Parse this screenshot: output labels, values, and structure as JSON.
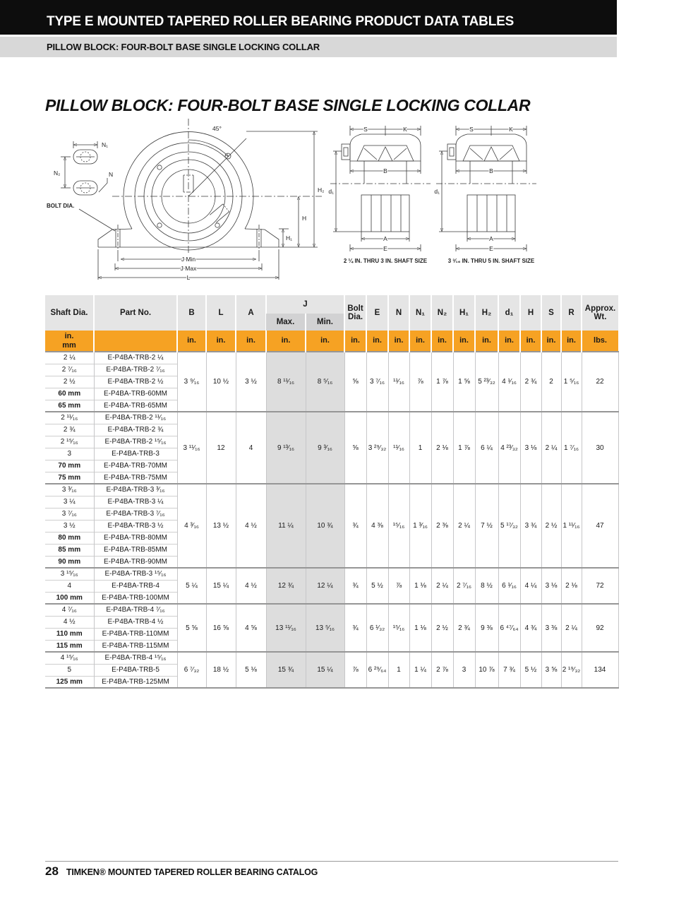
{
  "banner": {
    "line1": "TYPE E MOUNTED TAPERED ROLLER BEARING PRODUCT DATA TABLES",
    "line2": "PILLOW BLOCK: FOUR-BOLT BASE SINGLE LOCKING COLLAR"
  },
  "title": "PILLOW BLOCK: FOUR-BOLT BASE SINGLE LOCKING COLLAR",
  "diagrams": {
    "front": {
      "angle": "45°",
      "n1": "N₁",
      "n2": "N₂",
      "n": "N",
      "bolt_dia": "BOLT DIA.",
      "h2": "H₂",
      "h": "H",
      "h1": "H₁",
      "j_min": "J Min",
      "j_max": "J Max",
      "l": "L"
    },
    "section": {
      "s": "S",
      "k": "K",
      "b": "B",
      "d1": "d₁",
      "a": "A",
      "e": "E"
    },
    "caption_left": "2 ¼ IN. THRU 3 IN. SHAFT SIZE",
    "caption_right": "3 ³⁄₁₆ IN. THRU 5 IN. SHAFT SIZE"
  },
  "table": {
    "headers": {
      "shaft": "Shaft Dia.",
      "part": "Part No.",
      "b": "B",
      "l": "L",
      "a": "A",
      "j": "J",
      "jmax": "Max.",
      "jmin": "Min.",
      "bolt": "Bolt Dia.",
      "e": "E",
      "n": "N",
      "n1": "N₁",
      "n2": "N₂",
      "h1": "H₁",
      "h2": "H₂",
      "d1": "d₁",
      "h": "H",
      "s": "S",
      "r": "R",
      "wt": "Approx. Wt."
    },
    "units": {
      "shaft_in": "in.",
      "shaft_mm": "mm",
      "dim": "in.",
      "wt": "lbs."
    },
    "groups": [
      {
        "rows": [
          [
            "2 ¼",
            "E-P4BA-TRB-2 ¼"
          ],
          [
            "2 ⁷⁄₁₆",
            "E-P4BA-TRB-2 ⁷⁄₁₆"
          ],
          [
            "2 ½",
            "E-P4BA-TRB-2 ½"
          ],
          [
            "60 mm",
            "E-P4BA-TRB-60MM"
          ],
          [
            "65 mm",
            "E-P4BA-TRB-65MM"
          ]
        ],
        "dims": [
          "3 ⁹⁄₁₆",
          "10 ½",
          "3 ½",
          "8 ¹¹⁄₁₆",
          "8 ⁵⁄₁₆",
          "⅝",
          "3 ⁷⁄₁₆",
          "¹¹⁄₁₆",
          "⅞",
          "1 ⅞",
          "1 ⅝",
          "5 ²³⁄₃₂",
          "4 ¹⁄₁₆",
          "2 ¾",
          "2",
          "1 ⁵⁄₁₆",
          "22"
        ]
      },
      {
        "rows": [
          [
            "2 ¹¹⁄₁₆",
            "E-P4BA-TRB-2 ¹¹⁄₁₆"
          ],
          [
            "2 ¾",
            "E-P4BA-TRB-2 ¾"
          ],
          [
            "2 ¹⁵⁄₁₆",
            "E-P4BA-TRB-2 ¹⁵⁄₁₆"
          ],
          [
            "3",
            "E-P4BA-TRB-3"
          ],
          [
            "70 mm",
            "E-P4BA-TRB-70MM"
          ],
          [
            "75 mm",
            "E-P4BA-TRB-75MM"
          ]
        ],
        "dims": [
          "3 ¹¹⁄₁₆",
          "12",
          "4",
          "9 ¹³⁄₁₆",
          "9 ³⁄₁₆",
          "⅝",
          "3 ²⁹⁄₃₂",
          "¹¹⁄₁₆",
          "1",
          "2 ⅛",
          "1 ⅞",
          "6 ¼",
          "4 ²³⁄₃₂",
          "3 ⅛",
          "2 ¼",
          "1 ⁷⁄₁₆",
          "30"
        ]
      },
      {
        "rows": [
          [
            "3 ³⁄₁₆",
            "E-P4BA-TRB-3 ³⁄₁₆"
          ],
          [
            "3 ¼",
            "E-P4BA-TRB-3 ¼"
          ],
          [
            "3 ⁷⁄₁₆",
            "E-P4BA-TRB-3 ⁷⁄₁₆"
          ],
          [
            "3 ½",
            "E-P4BA-TRB-3 ½"
          ],
          [
            "80 mm",
            "E-P4BA-TRB-80MM"
          ],
          [
            "85 mm",
            "E-P4BA-TRB-85MM"
          ],
          [
            "90 mm",
            "E-P4BA-TRB-90MM"
          ]
        ],
        "dims": [
          "4 ³⁄₁₆",
          "13 ½",
          "4 ½",
          "11 ¼",
          "10 ¾",
          "¾",
          "4 ⅜",
          "¹⁵⁄₁₆",
          "1 ³⁄₁₆",
          "2 ⅜",
          "2 ¼",
          "7 ½",
          "5 ¹⁷⁄₃₂",
          "3 ¾",
          "2 ½",
          "1 ¹¹⁄₁₆",
          "47"
        ]
      },
      {
        "rows": [
          [
            "3 ¹⁵⁄₁₆",
            "E-P4BA-TRB-3 ¹⁵⁄₁₆"
          ],
          [
            "4",
            "E-P4BA-TRB-4"
          ],
          [
            "100 mm",
            "E-P4BA-TRB-100MM"
          ]
        ],
        "dims": [
          "5 ¼",
          "15 ¼",
          "4 ½",
          "12 ¾",
          "12 ¼",
          "¾",
          "5 ½",
          "⅞",
          "1 ⅛",
          "2 ¼",
          "2 ⁷⁄₁₆",
          "8 ½",
          "6 ¹⁄₁₆",
          "4 ¼",
          "3 ⅛",
          "2 ⅛",
          "72"
        ]
      },
      {
        "rows": [
          [
            "4 ⁷⁄₁₆",
            "E-P4BA-TRB-4 ⁷⁄₁₆"
          ],
          [
            "4 ½",
            "E-P4BA-TRB-4 ½"
          ],
          [
            "110 mm",
            "E-P4BA-TRB-110MM"
          ],
          [
            "115 mm",
            "E-P4BA-TRB-115MM"
          ]
        ],
        "dims": [
          "5 ⅝",
          "16 ⅝",
          "4 ⅝",
          "13 ¹¹⁄₁₆",
          "13 ⁵⁄₁₆",
          "¾",
          "6 ¹⁄₃₂",
          "¹⁵⁄₁₆",
          "1 ⅛",
          "2 ½",
          "2 ¾",
          "9 ⅜",
          "6 ⁴⁷⁄₆₄",
          "4 ¾",
          "3 ⅜",
          "2 ¼",
          "92"
        ]
      },
      {
        "rows": [
          [
            "4 ¹⁵⁄₁₆",
            "E-P4BA-TRB-4 ¹⁵⁄₁₆"
          ],
          [
            "5",
            "E-P4BA-TRB-5"
          ],
          [
            "125 mm",
            "E-P4BA-TRB-125MM"
          ]
        ],
        "dims": [
          "6 ⁷⁄₃₂",
          "18 ½",
          "5 ⅛",
          "15 ¾",
          "15 ¼",
          "⅞",
          "6 ²⁹⁄₆₄",
          "1",
          "1 ¼",
          "2 ⅞",
          "3",
          "10 ⅞",
          "7 ¾",
          "5 ½",
          "3 ⅝",
          "2 ¹⁹⁄₃₂",
          "134"
        ]
      }
    ]
  },
  "footer": {
    "page_number": "28",
    "text": "TIMKEN® MOUNTED TAPERED ROLLER BEARING CATALOG"
  },
  "colors": {
    "accent_orange": "#f6a223",
    "banner_bg": "#0d0d0d",
    "subbanner_bg": "#d8d8d8",
    "header_bg": "#e5e5e5",
    "subheader_bg": "#d2d2d3",
    "jcol_bg": "#dddddd"
  }
}
